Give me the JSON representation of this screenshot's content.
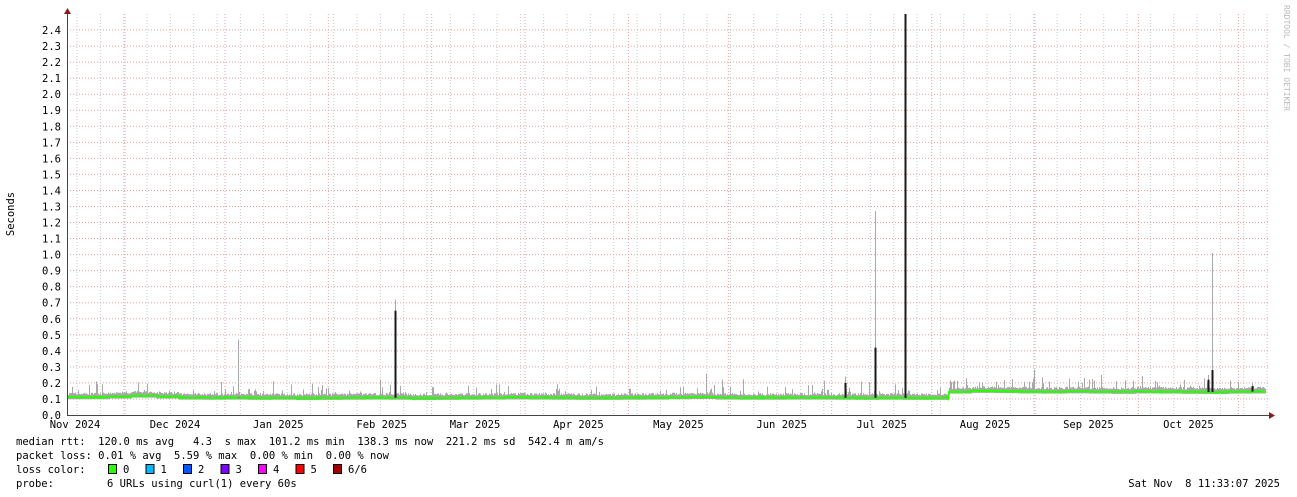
{
  "chart_data": {
    "type": "line",
    "ylabel": "Seconds",
    "ylim": [
      0,
      2.5
    ],
    "yticks": [
      "0.0",
      "0.1",
      "0.2",
      "0.3",
      "0.4",
      "0.5",
      "0.6",
      "0.7",
      "0.8",
      "0.9",
      "1.0",
      "1.1",
      "1.2",
      "1.3",
      "1.4",
      "1.5",
      "1.6",
      "1.7",
      "1.8",
      "1.9",
      "2.0",
      "2.1",
      "2.2",
      "2.3",
      "2.4"
    ],
    "xlim": [
      "2024-10-29",
      "2025-10-25"
    ],
    "xticks": [
      {
        "label": "Nov 2024",
        "date": "2024-11-01"
      },
      {
        "label": "Dec 2024",
        "date": "2024-12-01"
      },
      {
        "label": "Jan 2025",
        "date": "2025-01-01"
      },
      {
        "label": "Feb 2025",
        "date": "2025-02-01"
      },
      {
        "label": "Mar 2025",
        "date": "2025-03-01"
      },
      {
        "label": "Apr 2025",
        "date": "2025-04-01"
      },
      {
        "label": "May 2025",
        "date": "2025-05-01"
      },
      {
        "label": "Jun 2025",
        "date": "2025-06-01"
      },
      {
        "label": "Jul 2025",
        "date": "2025-07-01"
      },
      {
        "label": "Aug 2025",
        "date": "2025-08-01"
      },
      {
        "label": "Sep 2025",
        "date": "2025-09-01"
      },
      {
        "label": "Oct 2025",
        "date": "2025-10-01"
      }
    ],
    "grid": true,
    "median_weekly": {
      "start": "2024-10-28",
      "values": [
        0.11,
        0.11,
        0.115,
        0.12,
        0.115,
        0.108,
        0.107,
        0.108,
        0.106,
        0.107,
        0.105,
        0.106,
        0.107,
        0.108,
        0.107,
        0.105,
        0.106,
        0.107,
        0.108,
        0.109,
        0.108,
        0.107,
        0.106,
        0.106,
        0.107,
        0.108,
        0.11,
        0.112,
        0.108,
        0.107,
        0.107,
        0.108,
        0.108,
        0.107,
        0.106,
        0.107,
        0.106,
        0.106,
        0.145,
        0.15,
        0.148,
        0.146,
        0.145,
        0.147,
        0.145,
        0.144,
        0.146,
        0.145,
        0.144,
        0.143,
        0.145,
        0.146
      ]
    },
    "spikes": [
      {
        "date": "2024-12-20",
        "median": 0.11,
        "max": 0.47
      },
      {
        "date": "2025-02-05",
        "median": 0.65,
        "max": 0.72
      },
      {
        "date": "2025-06-20",
        "median": 0.2,
        "max": 0.24
      },
      {
        "date": "2025-06-29",
        "median": 0.42,
        "max": 1.27
      },
      {
        "date": "2025-07-08",
        "median": 2.5,
        "max": 2.5
      },
      {
        "date": "2025-10-07",
        "median": 0.22,
        "max": 0.25
      },
      {
        "date": "2025-10-08",
        "median": 0.28,
        "max": 1.01
      },
      {
        "date": "2025-10-20",
        "median": 0.18,
        "max": 0.2
      }
    ],
    "colors": {
      "median": "#26ff00",
      "smoke": "#a8a8a8",
      "spike": "#1a1a1a",
      "major_grid": "#e8a0a0",
      "minor_grid": "#c8c8c8"
    }
  },
  "legend": {
    "median_rtt": "median rtt:  120.0 ms avg   4.3  s max  101.2 ms min  138.3 ms now  221.2 ms sd  542.4 m am/s",
    "packet_loss": "packet loss: 0.01 % avg  5.59 % max  0.00 % min  0.00 % now",
    "loss_color_label": "loss color:",
    "loss_colors": [
      {
        "label": "0",
        "color": "#26ff00"
      },
      {
        "label": "1",
        "color": "#00b8ff"
      },
      {
        "label": "2",
        "color": "#0059ff"
      },
      {
        "label": "3",
        "color": "#7e00ff"
      },
      {
        "label": "4",
        "color": "#ff00ff"
      },
      {
        "label": "5",
        "color": "#ff0000"
      },
      {
        "label": "6/6",
        "color": "#a10000"
      }
    ],
    "probe_label": "probe:",
    "probe_value": "6 URLs using curl(1) every 60s",
    "timestamp": "Sat Nov  8 11:33:07 2025"
  },
  "watermark": "RRDTOOL / TOBI OETIKER"
}
